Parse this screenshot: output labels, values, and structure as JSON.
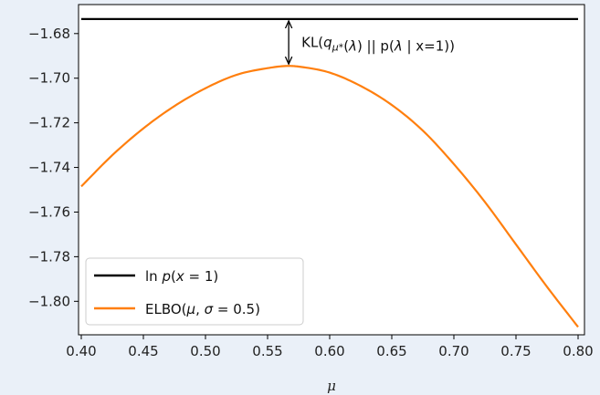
{
  "chart_data": {
    "type": "line",
    "title": "",
    "xlabel": "μ",
    "ylabel": "",
    "xlim": [
      0.4,
      0.8
    ],
    "ylim": [
      -1.815,
      -1.667
    ],
    "xticks": [
      0.4,
      0.45,
      0.5,
      0.55,
      0.6,
      0.65,
      0.7,
      0.75,
      0.8
    ],
    "xtick_labels": [
      "0.40",
      "0.45",
      "0.50",
      "0.55",
      "0.60",
      "0.65",
      "0.70",
      "0.75",
      "0.80"
    ],
    "yticks": [
      -1.68,
      -1.7,
      -1.72,
      -1.74,
      -1.76,
      -1.78,
      -1.8
    ],
    "ytick_labels": [
      "−1.68",
      "−1.70",
      "−1.72",
      "−1.74",
      "−1.76",
      "−1.78",
      "−1.80"
    ],
    "grid": false,
    "legend_position": "lower-left",
    "series": [
      {
        "name": "ln p(x = 1)",
        "color": "#000000",
        "x": [
          0.4,
          0.8
        ],
        "y": [
          -1.6735,
          -1.6735
        ]
      },
      {
        "name": "ELBO(μ, σ = 0.5)",
        "color": "#ff7f0e",
        "x": [
          0.4,
          0.425,
          0.45,
          0.475,
          0.5,
          0.525,
          0.55,
          0.567,
          0.575,
          0.6,
          0.625,
          0.65,
          0.675,
          0.7,
          0.725,
          0.75,
          0.775,
          0.8
        ],
        "y": [
          -1.7485,
          -1.7345,
          -1.7225,
          -1.7125,
          -1.7045,
          -1.6985,
          -1.6955,
          -1.6945,
          -1.6948,
          -1.6975,
          -1.7035,
          -1.712,
          -1.7235,
          -1.7385,
          -1.7555,
          -1.7745,
          -1.7935,
          -1.8115
        ]
      }
    ],
    "annotations": [
      {
        "type": "double-arrow",
        "x": 0.567,
        "y_from": -1.6735,
        "y_to": -1.6945,
        "label": "KL(q_μ*(λ) || p(λ | x=1))"
      }
    ]
  }
}
